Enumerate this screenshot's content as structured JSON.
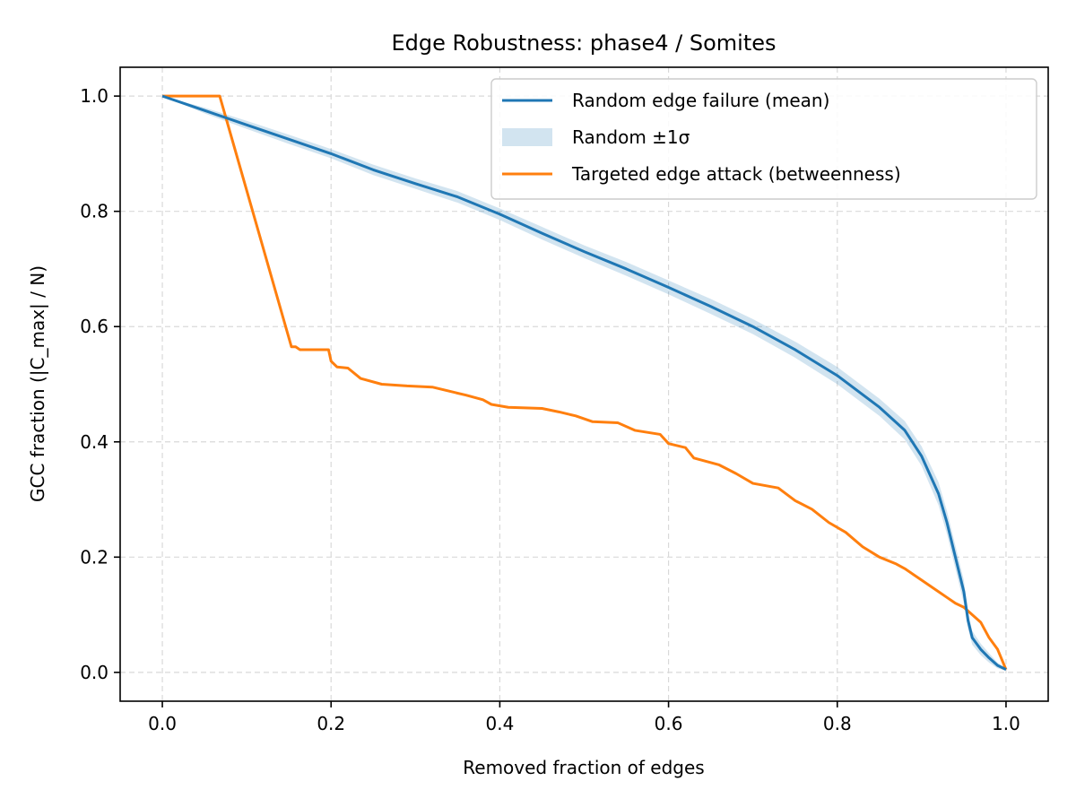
{
  "chart_data": {
    "type": "line",
    "title": "Edge Robustness: phase4 / Somites",
    "xlabel": "Removed fraction of edges",
    "ylabel": "GCC fraction (|C_max| / N)",
    "xlim": [
      -0.05,
      1.05
    ],
    "ylim": [
      -0.05,
      1.05
    ],
    "xticks": [
      0.0,
      0.2,
      0.4,
      0.6,
      0.8,
      1.0
    ],
    "xtick_labels": [
      "0.0",
      "0.2",
      "0.4",
      "0.6",
      "0.8",
      "1.0"
    ],
    "yticks": [
      0.0,
      0.2,
      0.4,
      0.6,
      0.8,
      1.0
    ],
    "ytick_labels": [
      "0.0",
      "0.2",
      "0.4",
      "0.6",
      "0.8",
      "1.0"
    ],
    "grid": true,
    "legend_position": "top-right",
    "series": [
      {
        "name": "Random edge failure (mean)",
        "color": "#1f77b4",
        "points": [
          [
            0.0,
            1.0
          ],
          [
            0.05,
            0.975
          ],
          [
            0.1,
            0.95
          ],
          [
            0.15,
            0.925
          ],
          [
            0.2,
            0.9
          ],
          [
            0.25,
            0.872
          ],
          [
            0.3,
            0.848
          ],
          [
            0.35,
            0.825
          ],
          [
            0.4,
            0.795
          ],
          [
            0.45,
            0.762
          ],
          [
            0.5,
            0.73
          ],
          [
            0.55,
            0.7
          ],
          [
            0.6,
            0.668
          ],
          [
            0.65,
            0.635
          ],
          [
            0.7,
            0.6
          ],
          [
            0.75,
            0.56
          ],
          [
            0.8,
            0.515
          ],
          [
            0.85,
            0.46
          ],
          [
            0.88,
            0.42
          ],
          [
            0.9,
            0.375
          ],
          [
            0.92,
            0.31
          ],
          [
            0.93,
            0.26
          ],
          [
            0.94,
            0.2
          ],
          [
            0.95,
            0.14
          ],
          [
            0.955,
            0.09
          ],
          [
            0.96,
            0.06
          ],
          [
            0.97,
            0.04
          ],
          [
            0.98,
            0.025
          ],
          [
            0.99,
            0.012
          ],
          [
            1.0,
            0.005
          ]
        ]
      },
      {
        "name": "Random ±1σ",
        "color": "#1f77b4",
        "opacity": 0.2,
        "band": [
          [
            0.0,
            1.0,
            1.0
          ],
          [
            0.05,
            0.97,
            0.98
          ],
          [
            0.1,
            0.943,
            0.957
          ],
          [
            0.15,
            0.917,
            0.933
          ],
          [
            0.2,
            0.892,
            0.908
          ],
          [
            0.25,
            0.863,
            0.881
          ],
          [
            0.3,
            0.839,
            0.857
          ],
          [
            0.35,
            0.815,
            0.835
          ],
          [
            0.4,
            0.785,
            0.805
          ],
          [
            0.45,
            0.751,
            0.773
          ],
          [
            0.5,
            0.719,
            0.741
          ],
          [
            0.55,
            0.688,
            0.712
          ],
          [
            0.6,
            0.656,
            0.68
          ],
          [
            0.65,
            0.622,
            0.648
          ],
          [
            0.7,
            0.587,
            0.613
          ],
          [
            0.75,
            0.546,
            0.574
          ],
          [
            0.8,
            0.5,
            0.53
          ],
          [
            0.85,
            0.445,
            0.475
          ],
          [
            0.88,
            0.404,
            0.436
          ],
          [
            0.9,
            0.358,
            0.392
          ],
          [
            0.92,
            0.29,
            0.33
          ],
          [
            0.93,
            0.24,
            0.28
          ],
          [
            0.94,
            0.18,
            0.22
          ],
          [
            0.95,
            0.12,
            0.16
          ],
          [
            0.955,
            0.075,
            0.105
          ],
          [
            0.96,
            0.048,
            0.072
          ],
          [
            0.97,
            0.03,
            0.05
          ],
          [
            0.98,
            0.017,
            0.033
          ],
          [
            0.99,
            0.007,
            0.017
          ],
          [
            1.0,
            0.003,
            0.007
          ]
        ]
      },
      {
        "name": "Targeted edge attack (betweenness)",
        "color": "#ff7f0e",
        "points": [
          [
            0.0,
            1.0
          ],
          [
            0.068,
            1.0
          ],
          [
            0.153,
            0.565
          ],
          [
            0.158,
            0.565
          ],
          [
            0.163,
            0.56
          ],
          [
            0.197,
            0.56
          ],
          [
            0.2,
            0.54
          ],
          [
            0.207,
            0.53
          ],
          [
            0.22,
            0.528
          ],
          [
            0.235,
            0.51
          ],
          [
            0.26,
            0.5
          ],
          [
            0.29,
            0.497
          ],
          [
            0.32,
            0.495
          ],
          [
            0.34,
            0.488
          ],
          [
            0.36,
            0.481
          ],
          [
            0.38,
            0.473
          ],
          [
            0.39,
            0.465
          ],
          [
            0.41,
            0.46
          ],
          [
            0.45,
            0.458
          ],
          [
            0.47,
            0.452
          ],
          [
            0.49,
            0.445
          ],
          [
            0.51,
            0.435
          ],
          [
            0.54,
            0.433
          ],
          [
            0.56,
            0.42
          ],
          [
            0.59,
            0.413
          ],
          [
            0.6,
            0.397
          ],
          [
            0.62,
            0.39
          ],
          [
            0.63,
            0.372
          ],
          [
            0.66,
            0.36
          ],
          [
            0.68,
            0.345
          ],
          [
            0.7,
            0.328
          ],
          [
            0.73,
            0.32
          ],
          [
            0.75,
            0.298
          ],
          [
            0.77,
            0.283
          ],
          [
            0.79,
            0.26
          ],
          [
            0.81,
            0.243
          ],
          [
            0.83,
            0.218
          ],
          [
            0.85,
            0.2
          ],
          [
            0.87,
            0.188
          ],
          [
            0.88,
            0.18
          ],
          [
            0.9,
            0.16
          ],
          [
            0.92,
            0.14
          ],
          [
            0.93,
            0.13
          ],
          [
            0.94,
            0.12
          ],
          [
            0.95,
            0.113
          ],
          [
            0.96,
            0.1
          ],
          [
            0.97,
            0.087
          ],
          [
            0.98,
            0.06
          ],
          [
            0.99,
            0.04
          ],
          [
            1.0,
            0.005
          ]
        ]
      }
    ]
  }
}
